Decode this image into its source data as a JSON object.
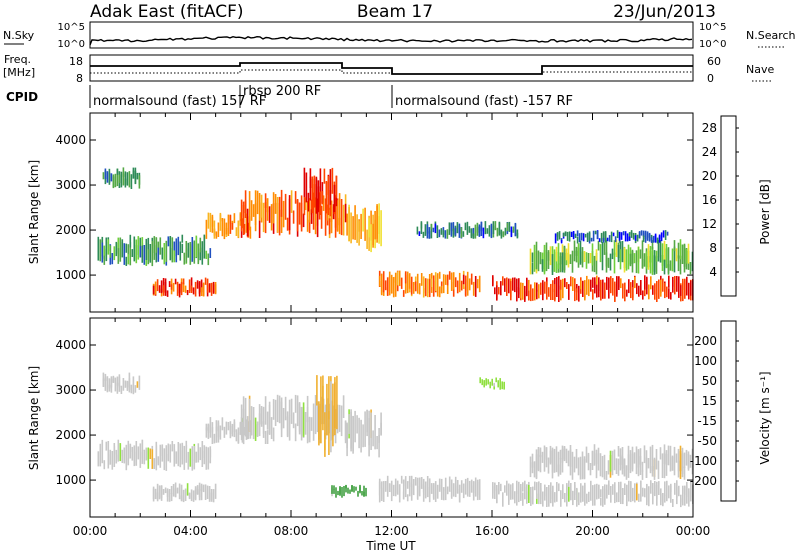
{
  "header": {
    "radar": "Adak East (fitACF)",
    "beam": "Beam 17",
    "date": "23/Jun/2013"
  },
  "top_panels": {
    "nsky_label": "N.Sky",
    "nsky_ticks": [
      "10^5",
      "10^0"
    ],
    "nsearch_label": "N.Search",
    "freq_label": "Freq.",
    "freq_unit": "[MHz]",
    "freq_ticks": [
      "18",
      "8"
    ],
    "nave_label": "Nave",
    "nave_ticks": [
      "60",
      "0"
    ],
    "cpid_label": "CPID",
    "cpid_segments": [
      {
        "text": "normalsound (fast) 157 RF",
        "start": 0,
        "end": 12
      },
      {
        "text": "rbsp 200 RF",
        "start": 6,
        "end": 12
      },
      {
        "text": "normalsound (fast) -157 RF",
        "start": 12,
        "end": 24
      }
    ]
  },
  "chart_data": [
    {
      "type": "heatmap",
      "title": "",
      "xlabel": "Time UT",
      "ylabel": "Slant Range [km]",
      "xlim": [
        0,
        24
      ],
      "ylim": [
        180,
        4600
      ],
      "x_ticks": [
        "00:00",
        "04:00",
        "08:00",
        "12:00",
        "16:00",
        "20:00",
        "00:00"
      ],
      "y_ticks": [
        "1000",
        "2000",
        "3000",
        "4000"
      ],
      "colorbar": {
        "label": "Power [dB]",
        "ticks": [
          "28",
          "24",
          "20",
          "16",
          "12",
          "8",
          "4"
        ],
        "range": [
          0,
          30
        ],
        "colors": [
          "#0000ff",
          "#2050c0",
          "#2e8b57",
          "#55a845",
          "#6fcf3a",
          "#f0e030",
          "#f9b520",
          "#ff8c00",
          "#ff4500",
          "#e00000"
        ]
      },
      "echo_regions": [
        {
          "t0": 0.3,
          "t1": 4.8,
          "r0": 1200,
          "r1": 1900,
          "level": 9
        },
        {
          "t0": 2.5,
          "t1": 5.0,
          "r0": 500,
          "r1": 950,
          "level": 26
        },
        {
          "t0": 0.5,
          "t1": 2.0,
          "r0": 2900,
          "r1": 3400,
          "level": 8
        },
        {
          "t0": 4.6,
          "t1": 6.4,
          "r0": 1800,
          "r1": 2400,
          "level": 22
        },
        {
          "t0": 6.0,
          "t1": 10.2,
          "r0": 1800,
          "r1": 2900,
          "level": 24
        },
        {
          "t0": 8.5,
          "t1": 9.8,
          "r0": 2300,
          "r1": 3400,
          "level": 28
        },
        {
          "t0": 10.2,
          "t1": 11.6,
          "r0": 1500,
          "r1": 2600,
          "level": 20
        },
        {
          "t0": 11.5,
          "t1": 15.5,
          "r0": 500,
          "r1": 1100,
          "level": 24
        },
        {
          "t0": 13.0,
          "t1": 17.0,
          "r0": 1800,
          "r1": 2200,
          "level": 6
        },
        {
          "t0": 16.0,
          "t1": 24.0,
          "r0": 400,
          "r1": 1000,
          "level": 27
        },
        {
          "t0": 17.5,
          "t1": 24.0,
          "r0": 1000,
          "r1": 1800,
          "level": 12
        },
        {
          "t0": 18.5,
          "t1": 23.0,
          "r0": 1700,
          "r1": 2000,
          "level": 5
        }
      ]
    },
    {
      "type": "heatmap",
      "title": "",
      "xlabel": "Time UT",
      "ylabel": "Slant Range [km]",
      "xlim": [
        0,
        24
      ],
      "ylim": [
        180,
        4600
      ],
      "x_ticks": [
        "00:00",
        "04:00",
        "08:00",
        "12:00",
        "16:00",
        "20:00",
        "00:00"
      ],
      "y_ticks": [
        "1000",
        "2000",
        "3000",
        "4000"
      ],
      "colorbar": {
        "label": "Velocity [m s⁻¹]",
        "ticks": [
          "200",
          "100",
          "50",
          "15",
          "-15",
          "-50",
          "-100",
          "-200"
        ],
        "range": [
          -250,
          250
        ],
        "colors": [
          "#e00000",
          "#ff4500",
          "#ff8c00",
          "#f0b030",
          "#c8c8c8",
          "#c8c8c8",
          "#90e040",
          "#40a040",
          "#2060a0",
          "#1030c0"
        ]
      },
      "echo_regions": [
        {
          "t0": 0.3,
          "t1": 4.8,
          "r0": 1200,
          "r1": 1900,
          "vel": 0
        },
        {
          "t0": 2.5,
          "t1": 5.0,
          "r0": 500,
          "r1": 950,
          "vel": 0
        },
        {
          "t0": 0.5,
          "t1": 2.0,
          "r0": 2900,
          "r1": 3400,
          "vel": 0
        },
        {
          "t0": 4.6,
          "t1": 6.4,
          "r0": 1800,
          "r1": 2400,
          "vel": 0
        },
        {
          "t0": 6.0,
          "t1": 10.2,
          "r0": 1800,
          "r1": 2900,
          "vel": 0
        },
        {
          "t0": 9.0,
          "t1": 9.8,
          "r0": 1400,
          "r1": 3400,
          "vel": -60
        },
        {
          "t0": 10.2,
          "t1": 11.6,
          "r0": 1500,
          "r1": 2600,
          "vel": 0
        },
        {
          "t0": 11.5,
          "t1": 15.5,
          "r0": 500,
          "r1": 1100,
          "vel": 0
        },
        {
          "t0": 9.6,
          "t1": 11.0,
          "r0": 600,
          "r1": 900,
          "vel": 120
        },
        {
          "t0": 16.0,
          "t1": 24.0,
          "r0": 400,
          "r1": 1000,
          "vel": 0
        },
        {
          "t0": 17.5,
          "t1": 24.0,
          "r0": 1000,
          "r1": 1800,
          "vel": 0
        },
        {
          "t0": 15.5,
          "t1": 16.5,
          "r0": 3000,
          "r1": 3300,
          "vel": 60
        }
      ]
    }
  ]
}
